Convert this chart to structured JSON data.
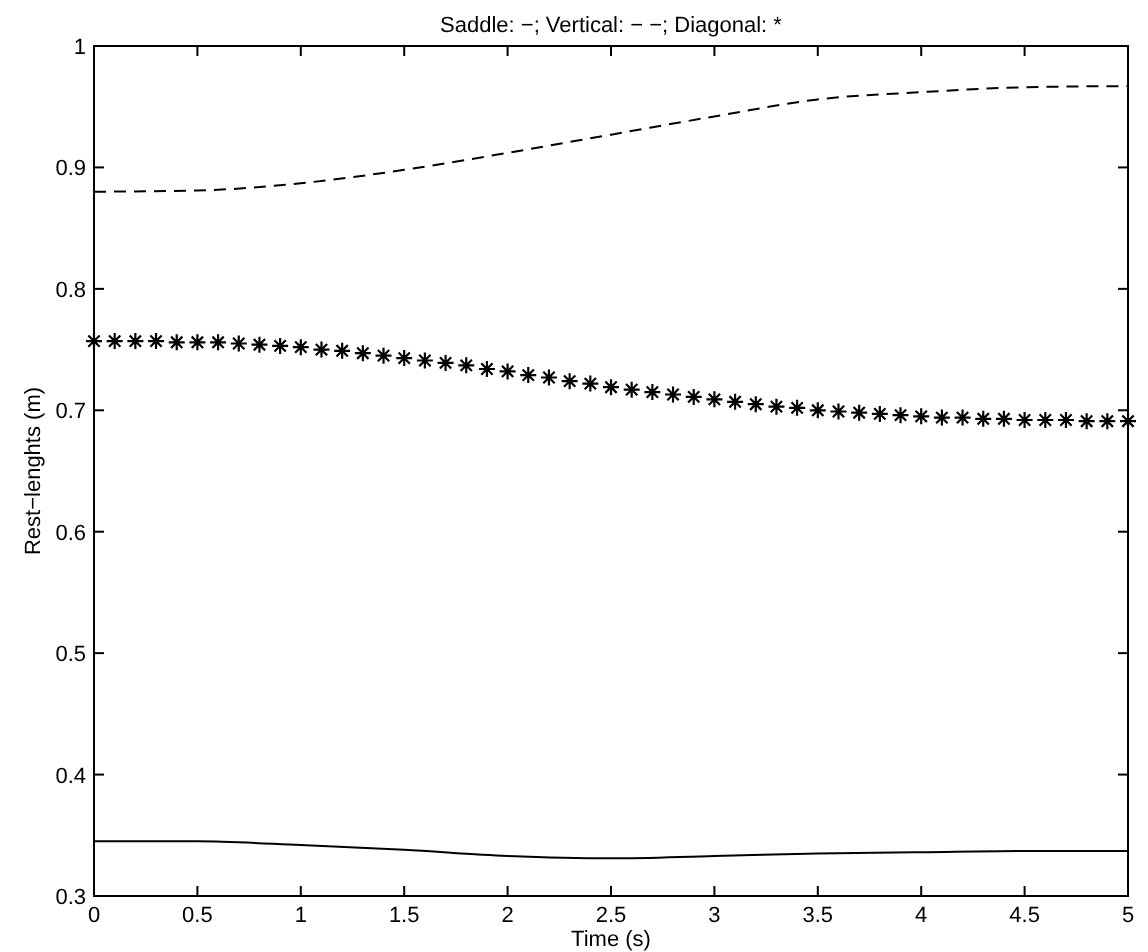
{
  "chart_data": {
    "type": "line",
    "title": "Saddle: −; Vertical: − −; Diagonal: *",
    "xlabel": "Time (s)",
    "ylabel": "Rest−lenghts (m)",
    "xlim": [
      0,
      5
    ],
    "ylim": [
      0.3,
      1
    ],
    "xticks": [
      0,
      0.5,
      1,
      1.5,
      2,
      2.5,
      3,
      3.5,
      4,
      4.5,
      5
    ],
    "yticks": [
      0.3,
      0.4,
      0.5,
      0.6,
      0.7,
      0.8,
      0.9,
      1
    ],
    "grid": false,
    "series": [
      {
        "color": "#000000",
        "line_style": "solid",
        "marker": "none",
        "x": [
          0,
          0.5,
          1,
          1.5,
          2,
          2.5,
          3,
          3.5,
          4,
          4.5,
          5
        ],
        "values": [
          0.345,
          0.345,
          0.342,
          0.338,
          0.333,
          0.331,
          0.333,
          0.335,
          0.336,
          0.337,
          0.337
        ]
      },
      {
        "color": "#000000",
        "line_style": "dashed",
        "marker": "none",
        "x": [
          0,
          0.5,
          1,
          1.5,
          2,
          2.5,
          3,
          3.5,
          4,
          4.5,
          5
        ],
        "values": [
          0.88,
          0.881,
          0.887,
          0.898,
          0.912,
          0.927,
          0.942,
          0.956,
          0.962,
          0.966,
          0.967
        ]
      },
      {
        "type": "scatter",
        "color": "#000000",
        "marker": "cross",
        "x": [
          0,
          0.1,
          0.2,
          0.3,
          0.4,
          0.5,
          0.6,
          0.7,
          0.8,
          0.9,
          1,
          1.1,
          1.2,
          1.3,
          1.4,
          1.5,
          1.6,
          1.7,
          1.8,
          1.9,
          2,
          2.1,
          2.2,
          2.3,
          2.4,
          2.5,
          2.6,
          2.7,
          2.8,
          2.9,
          3,
          3.1,
          3.2,
          3.3,
          3.4,
          3.5,
          3.6,
          3.7,
          3.8,
          3.9,
          4,
          4.1,
          4.2,
          4.3,
          4.4,
          4.5,
          4.6,
          4.7,
          4.8,
          4.9,
          5
        ],
        "values": [
          0.757,
          0.757,
          0.757,
          0.757,
          0.756,
          0.756,
          0.756,
          0.755,
          0.754,
          0.753,
          0.752,
          0.75,
          0.749,
          0.747,
          0.745,
          0.743,
          0.741,
          0.739,
          0.737,
          0.734,
          0.732,
          0.729,
          0.727,
          0.724,
          0.722,
          0.719,
          0.717,
          0.715,
          0.713,
          0.711,
          0.709,
          0.707,
          0.705,
          0.703,
          0.702,
          0.7,
          0.699,
          0.698,
          0.697,
          0.696,
          0.695,
          0.694,
          0.694,
          0.693,
          0.693,
          0.692,
          0.692,
          0.692,
          0.691,
          0.691,
          0.691
        ]
      }
    ]
  }
}
